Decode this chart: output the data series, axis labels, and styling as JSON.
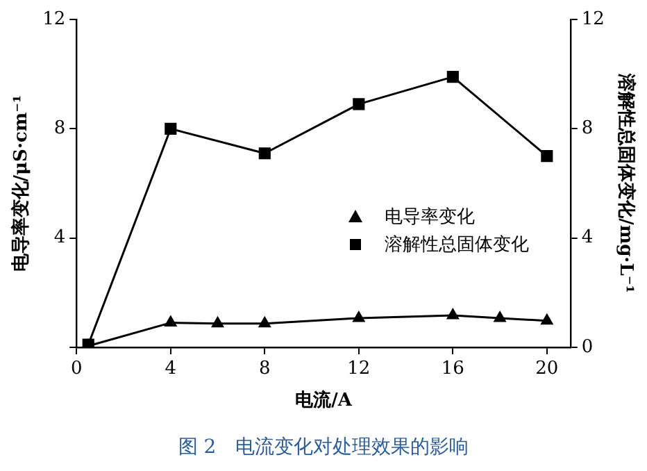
{
  "chart_data": {
    "type": "line",
    "title": "图 2　电流变化对处理效果的影响",
    "xlabel": "电流/A",
    "ylabel": "电导率变化/μS·cm⁻¹",
    "y2label": "溶解性总固体变化/mg·L⁻¹",
    "x": [
      0.5,
      4,
      6,
      8,
      12,
      16,
      18,
      20
    ],
    "series": [
      {
        "name": "电导率变化",
        "color": "#000000",
        "marker": "triangle",
        "values": [
          0.05,
          0.9,
          0.87,
          0.87,
          1.07,
          1.17,
          1.07,
          0.97
        ]
      },
      {
        "name": "溶解性总固体变化",
        "color": "#000000",
        "marker": "square",
        "axis": "y2",
        "x": [
          0.5,
          4,
          8,
          12,
          16,
          20
        ],
        "values": [
          0.1,
          8.0,
          7.1,
          8.9,
          9.9,
          7.0
        ]
      }
    ],
    "xlim": [
      0,
      21
    ],
    "xticks": [
      0,
      4,
      8,
      12,
      16,
      20
    ],
    "ylim": [
      0,
      12
    ],
    "yticks": [
      {
        "value": 0,
        "label": null
      },
      4,
      8,
      12
    ],
    "y2lim": [
      0,
      12
    ],
    "y2ticks": [
      0,
      4,
      8,
      12
    ],
    "grid": false,
    "legend": "right",
    "line_style": "solid"
  }
}
